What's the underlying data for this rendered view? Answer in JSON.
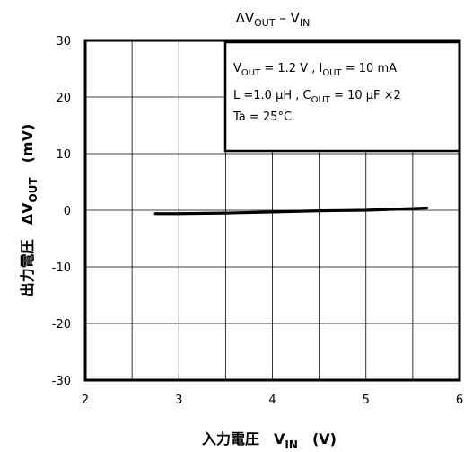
{
  "chart_data": {
    "type": "line",
    "title": {
      "main": "ΔV",
      "sub1": "OUT",
      "mid": " – V",
      "sub2": "IN"
    },
    "xlabel": {
      "main": "入力電圧　V",
      "sub": "IN",
      "unit": "　(V)"
    },
    "ylabel": {
      "main": "出力電圧　ΔV",
      "sub": "OUT",
      "unit": "　(mV)"
    },
    "xlim": [
      2,
      6
    ],
    "ylim": [
      -30,
      30
    ],
    "xticks": [
      2,
      3,
      4,
      5,
      6
    ],
    "yticks": [
      30,
      20,
      10,
      0,
      -10,
      -20,
      -30
    ],
    "grid": true,
    "series": [
      {
        "color": "#000000",
        "x": [
          2.75,
          3.0,
          3.5,
          4.0,
          4.5,
          5.0,
          5.5,
          5.65
        ],
        "y": [
          -0.6,
          -0.6,
          -0.5,
          -0.3,
          -0.1,
          0.0,
          0.3,
          0.4
        ]
      }
    ],
    "annotation": {
      "line1": [
        {
          "t": "V"
        },
        {
          "t": "OUT",
          "sub": true
        },
        {
          "t": " = 1.2 V , I"
        },
        {
          "t": "OUT",
          "sub": true
        },
        {
          "t": " = 10 mA"
        }
      ],
      "line2": [
        {
          "t": "L =1.0 μH , C"
        },
        {
          "t": "OUT",
          "sub": true
        },
        {
          "t": " = 10 μF  ×2"
        }
      ],
      "line3": [
        {
          "t": "Ta = 25°C"
        }
      ]
    }
  }
}
